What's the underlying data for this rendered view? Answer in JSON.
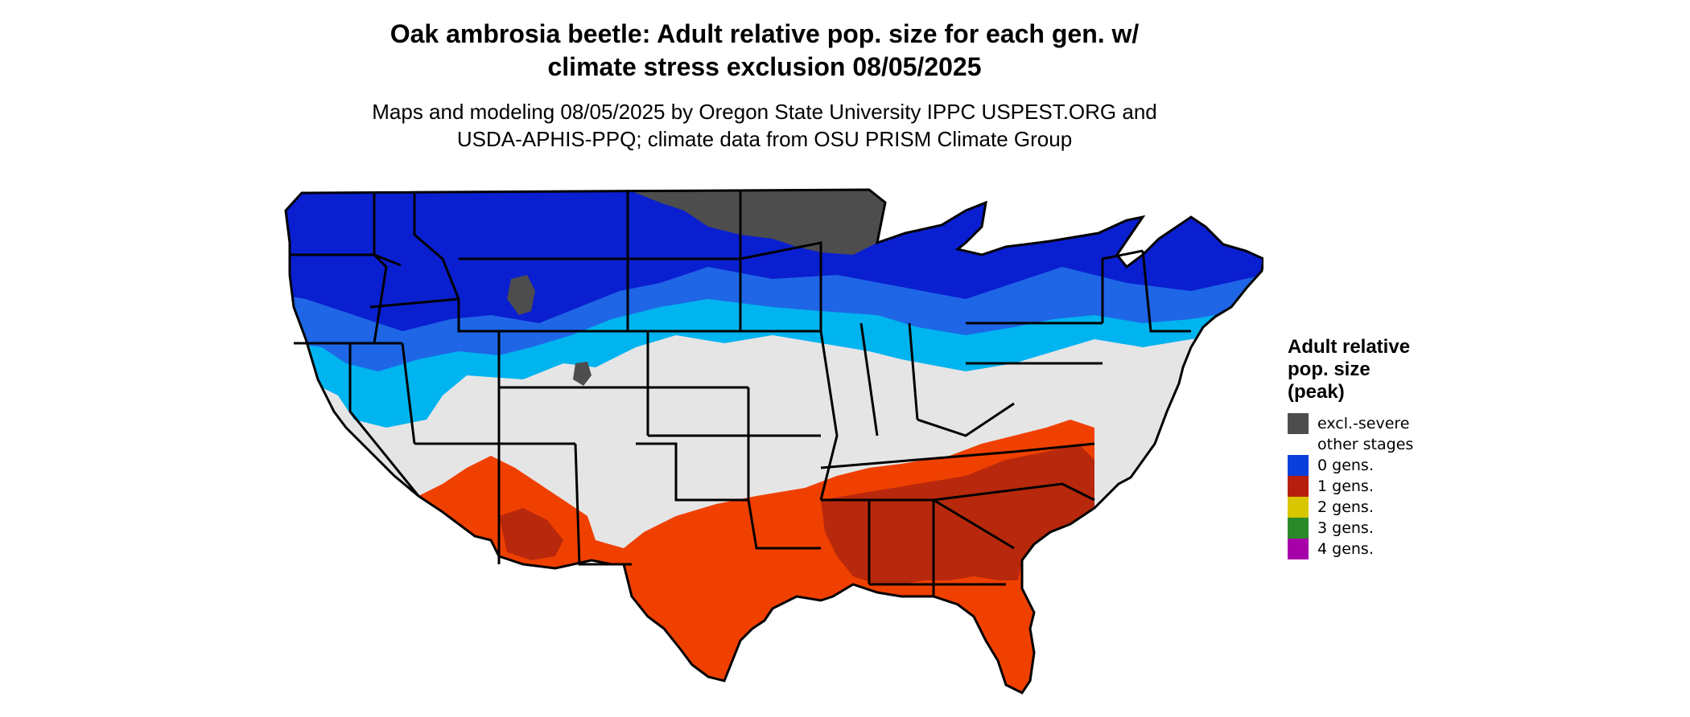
{
  "title": {
    "line1": "Oak ambrosia beetle: Adult relative pop. size for each gen. w/",
    "line2": "climate stress exclusion 08/05/2025"
  },
  "subtitle": {
    "line1": "Maps and modeling 08/05/2025 by Oregon State University IPPC USPEST.ORG and",
    "line2": "USDA-APHIS-PPQ; climate data from OSU PRISM Climate Group"
  },
  "legend": {
    "title_line1": "Adult relative",
    "title_line2": "pop. size",
    "title_line3": "(peak)",
    "items": [
      {
        "label": "excl.-severe",
        "color": "#4d4d4d"
      },
      {
        "label": "other stages",
        "color": "#ffffff"
      },
      {
        "label": "0 gens.",
        "color": "#0a3fdc"
      },
      {
        "label": "1 gens.",
        "color": "#b81e0e"
      },
      {
        "label": "2 gens.",
        "color": "#d8c600"
      },
      {
        "label": "3 gens.",
        "color": "#2a8a2a"
      },
      {
        "label": "4 gens.",
        "color": "#a800a8"
      }
    ]
  },
  "map_colors": {
    "excluded": "#4d4d4d",
    "other": "#e5e5e5",
    "zero_gen_dark": "#0a1fd0",
    "zero_gen_mid": "#1e66e6",
    "zero_gen_light": "#00b4f0",
    "one_gen_bright": "#f04000",
    "one_gen_dark": "#b8280c"
  }
}
